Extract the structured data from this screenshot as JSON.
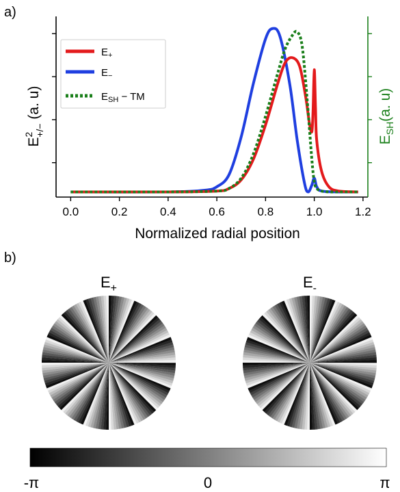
{
  "panel_labels": {
    "a": "a)",
    "b": "b)"
  },
  "chart_data": [
    {
      "type": "line",
      "panel": "a)",
      "xlabel": "Normalized radial position",
      "ylabel_left": {
        "main": "E",
        "sup": "2",
        "sub": "+/−",
        "unit": " (a. u)"
      },
      "ylabel_right": {
        "main": "E",
        "sub": "SH",
        "unit": "(a. u)",
        "color": "#1a7f1a"
      },
      "xlim": [
        -0.06,
        1.22
      ],
      "ylim": [
        0,
        1.05
      ],
      "xticks": [
        0.0,
        0.2,
        0.4,
        0.6,
        0.8,
        1.0,
        1.2
      ],
      "xtick_labels": [
        "0.0",
        "0.2",
        "0.4",
        "0.6",
        "0.8",
        "1.0",
        "1.2"
      ],
      "left_yticks": [
        0.2,
        0.45,
        0.7,
        0.95
      ],
      "right_yticks": [
        0.2,
        0.45,
        0.7,
        0.95
      ],
      "grid": false,
      "legend_position": "top-left",
      "series": [
        {
          "name": "E",
          "name_sub": "+",
          "color": "#e31a1c",
          "style": "solid",
          "x": [
            0.0,
            0.4,
            0.6,
            0.65,
            0.7,
            0.75,
            0.8,
            0.85,
            0.88,
            0.91,
            0.94,
            0.965,
            0.98,
            0.99,
            0.995,
            1.0,
            1.005,
            1.01,
            1.03,
            1.06,
            1.1,
            1.18
          ],
          "y": [
            0.03,
            0.03,
            0.035,
            0.05,
            0.1,
            0.22,
            0.42,
            0.66,
            0.78,
            0.81,
            0.76,
            0.58,
            0.43,
            0.38,
            0.5,
            0.74,
            0.52,
            0.33,
            0.15,
            0.06,
            0.035,
            0.03
          ]
        },
        {
          "name": "E",
          "name_sub": "−",
          "color": "#1f3fe0",
          "style": "solid",
          "x": [
            0.0,
            0.4,
            0.55,
            0.6,
            0.65,
            0.7,
            0.75,
            0.8,
            0.83,
            0.86,
            0.9,
            0.93,
            0.96,
            0.975,
            0.99,
            1.0,
            1.01,
            1.03,
            1.1,
            1.18
          ],
          "y": [
            0.03,
            0.03,
            0.04,
            0.06,
            0.13,
            0.35,
            0.66,
            0.92,
            0.98,
            0.93,
            0.65,
            0.33,
            0.08,
            0.03,
            0.07,
            0.11,
            0.06,
            0.035,
            0.03,
            0.03
          ]
        },
        {
          "name": "E",
          "name_sub": "SH",
          "name_suffix": " − TM",
          "color": "#1a7f1a",
          "style": "dotted",
          "x": [
            0.0,
            0.4,
            0.6,
            0.65,
            0.7,
            0.75,
            0.8,
            0.85,
            0.88,
            0.91,
            0.93,
            0.95,
            0.97,
            0.99,
            1.0,
            1.01,
            1.03,
            1.06,
            1.1,
            1.18
          ],
          "y": [
            0.03,
            0.03,
            0.035,
            0.05,
            0.11,
            0.25,
            0.47,
            0.72,
            0.86,
            0.94,
            0.96,
            0.88,
            0.58,
            0.22,
            0.09,
            0.05,
            0.035,
            0.03,
            0.03,
            0.03
          ]
        }
      ]
    },
    {
      "type": "heatmap",
      "panel": "b)",
      "colormap": "gray",
      "range_labels": [
        "-π",
        "0",
        "π"
      ],
      "images": [
        {
          "title": "E",
          "title_sub": "+",
          "sectors": 16,
          "direction": "clockwise"
        },
        {
          "title": "E",
          "title_sub": "-",
          "sectors": 16,
          "direction": "counterclockwise"
        }
      ]
    }
  ]
}
